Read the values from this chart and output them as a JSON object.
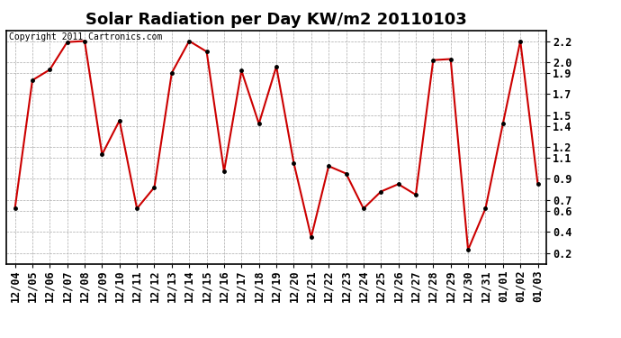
{
  "title": "Solar Radiation per Day KW/m2 20110103",
  "copyright_text": "Copyright 2011 Cartronics.com",
  "dates": [
    "12/04",
    "12/05",
    "12/06",
    "12/07",
    "12/08",
    "12/09",
    "12/10",
    "12/11",
    "12/12",
    "12/13",
    "12/14",
    "12/15",
    "12/16",
    "12/17",
    "12/18",
    "12/19",
    "12/20",
    "12/21",
    "12/22",
    "12/23",
    "12/24",
    "12/25",
    "12/26",
    "12/27",
    "12/28",
    "12/29",
    "12/30",
    "12/31",
    "01/01",
    "01/02",
    "01/03"
  ],
  "values": [
    0.62,
    1.83,
    1.93,
    2.19,
    2.2,
    1.13,
    1.45,
    0.62,
    0.82,
    1.9,
    2.2,
    2.1,
    0.97,
    1.92,
    1.42,
    1.96,
    1.05,
    0.35,
    1.02,
    0.95,
    0.62,
    0.78,
    0.85,
    0.75,
    2.02,
    2.03,
    0.23,
    0.62,
    1.42,
    2.2,
    0.85
  ],
  "line_color": "#cc0000",
  "marker_color": "#000000",
  "bg_color": "#ffffff",
  "plot_bg_color": "#ffffff",
  "grid_color": "#aaaaaa",
  "ylim": [
    0.1,
    2.3
  ],
  "ytick_values": [
    0.2,
    0.4,
    0.6,
    0.7,
    0.9,
    1.1,
    1.2,
    1.4,
    1.5,
    1.7,
    1.9,
    2.0,
    2.2
  ],
  "ytick_labels": [
    "0.2",
    "0.4",
    "0.6",
    "0.7",
    "0.9",
    "1.1",
    "1.2",
    "1.4",
    "1.5",
    "1.7",
    "1.9",
    "2.0",
    "2.2"
  ],
  "title_fontsize": 13,
  "tick_fontsize": 8.5,
  "copyright_fontsize": 7
}
